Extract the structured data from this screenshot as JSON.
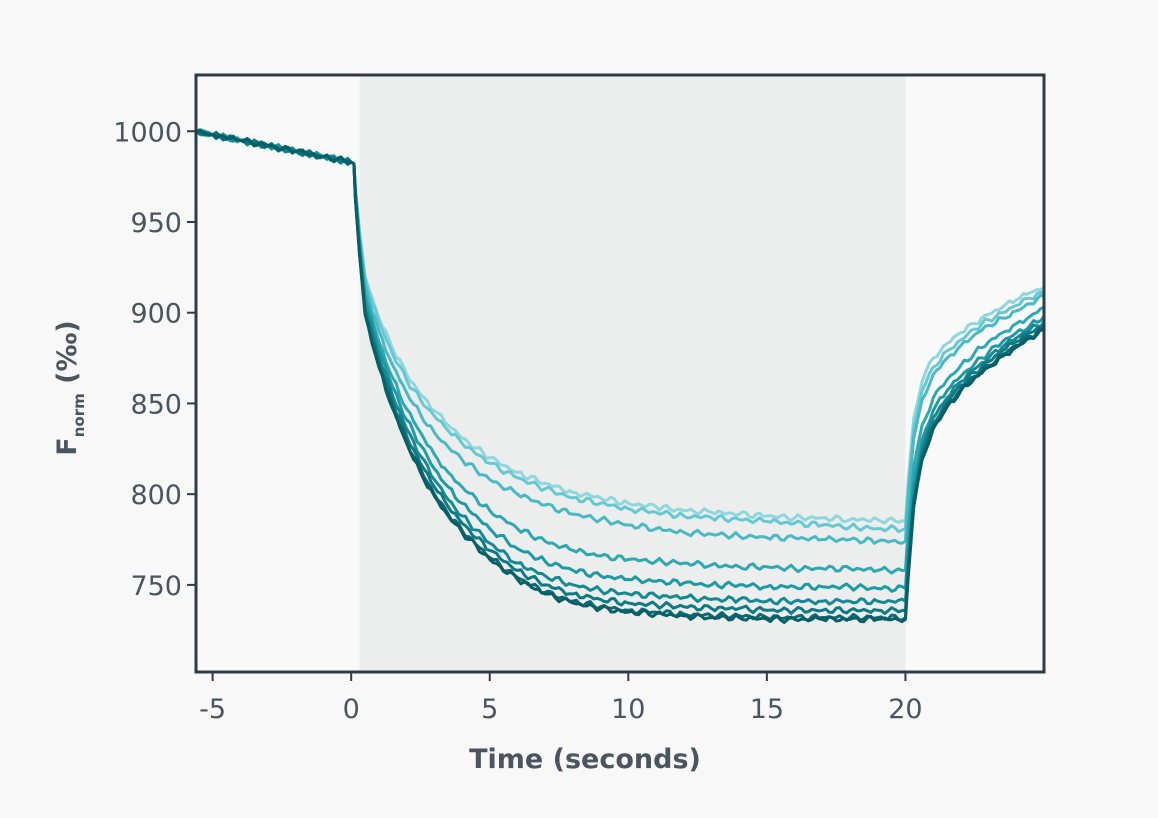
{
  "chart_data": {
    "type": "line",
    "title": "",
    "xlabel": "Time (seconds)",
    "ylabel_main": "F",
    "ylabel_sub": "norm",
    "ylabel_unit": " (‰)",
    "xlim": [
      -5.6,
      25
    ],
    "ylim": [
      702,
      1031
    ],
    "x_ticks": [
      -5,
      0,
      5,
      10,
      15,
      20
    ],
    "x_tick_labels": [
      "-5",
      "0",
      "5",
      "10",
      "15",
      "20"
    ],
    "y_ticks": [
      750,
      800,
      850,
      900,
      950,
      1000
    ],
    "y_tick_labels": [
      "750",
      "800",
      "850",
      "900",
      "950",
      "1000"
    ],
    "grid": false,
    "legend": "none",
    "shaded_interval": [
      0.3,
      20
    ],
    "x": [
      -5.6,
      -5,
      -4,
      -3,
      -2,
      -1,
      0,
      0.1,
      0.15,
      0.3,
      0.5,
      1,
      1.5,
      2,
      2.5,
      3,
      3.5,
      4,
      5,
      6,
      7,
      8,
      9,
      10,
      11,
      12,
      13,
      14,
      15,
      16,
      17,
      18,
      19,
      20,
      20.1,
      20.3,
      20.6,
      21,
      21.5,
      22,
      22.5,
      23,
      23.5,
      24,
      24.5,
      25
    ],
    "series": [
      {
        "color": "#8fd6dd",
        "values": [
          1000,
          998,
          995,
          992,
          989,
          986,
          983,
          982,
          969,
          945,
          920,
          897,
          880,
          866,
          855,
          846,
          838,
          831,
          820,
          812,
          806,
          801,
          798,
          795,
          793,
          791,
          790,
          789,
          788,
          787,
          787,
          786,
          786,
          785,
          808,
          842,
          862,
          875,
          883,
          889,
          894,
          899,
          903,
          907,
          911,
          914
        ]
      },
      {
        "color": "#66c8d2",
        "values": [
          1000,
          998,
          995,
          992,
          989,
          986,
          983,
          982,
          969,
          944,
          919,
          895,
          877,
          863,
          852,
          843,
          835,
          828,
          817,
          809,
          803,
          798,
          795,
          792,
          790,
          788,
          787,
          786,
          785,
          784,
          783,
          782,
          781,
          781,
          802,
          836,
          857,
          870,
          879,
          885,
          891,
          896,
          900,
          904,
          908,
          911
        ]
      },
      {
        "color": "#4ab9c3",
        "values": [
          1000,
          998,
          995,
          992,
          989,
          986,
          983,
          982,
          968,
          942,
          915,
          890,
          871,
          856,
          844,
          834,
          826,
          819,
          808,
          800,
          794,
          789,
          786,
          783,
          781,
          779,
          778,
          777,
          776,
          776,
          775,
          775,
          774,
          774,
          797,
          831,
          852,
          866,
          875,
          882,
          888,
          893,
          897,
          901,
          905,
          909
        ]
      },
      {
        "color": "#2fa8b2",
        "values": [
          1000,
          998,
          995,
          992,
          989,
          986,
          983,
          982,
          967,
          939,
          910,
          884,
          864,
          847,
          834,
          822,
          812,
          804,
          791,
          781,
          774,
          769,
          766,
          764,
          763,
          762,
          761,
          760,
          760,
          759,
          759,
          759,
          758,
          758,
          781,
          815,
          838,
          853,
          863,
          871,
          878,
          884,
          889,
          894,
          898,
          903
        ]
      },
      {
        "color": "#1f9aa4",
        "values": [
          1000,
          998,
          995,
          992,
          989,
          986,
          983,
          982,
          966,
          937,
          907,
          880,
          859,
          841,
          827,
          814,
          804,
          795,
          781,
          770,
          763,
          758,
          755,
          753,
          752,
          751,
          750,
          750,
          749,
          749,
          749,
          749,
          748,
          748,
          771,
          806,
          830,
          846,
          857,
          865,
          872,
          878,
          884,
          889,
          893,
          898
        ]
      },
      {
        "color": "#168a94",
        "values": [
          1000,
          998,
          995,
          992,
          989,
          986,
          983,
          982,
          965,
          935,
          904,
          876,
          854,
          836,
          821,
          808,
          797,
          788,
          773,
          762,
          755,
          750,
          747,
          745,
          744,
          743,
          742,
          742,
          741,
          741,
          741,
          741,
          741,
          741,
          763,
          800,
          825,
          842,
          853,
          862,
          869,
          875,
          881,
          886,
          891,
          895
        ]
      },
      {
        "color": "#0f7a84",
        "values": [
          1000,
          998,
          995,
          992,
          989,
          986,
          983,
          982,
          964,
          934,
          902,
          873,
          851,
          832,
          817,
          804,
          793,
          784,
          769,
          758,
          750,
          745,
          742,
          740,
          739,
          738,
          737,
          737,
          736,
          736,
          736,
          736,
          736,
          736,
          759,
          797,
          822,
          839,
          851,
          860,
          867,
          873,
          879,
          884,
          889,
          893
        ]
      },
      {
        "color": "#0b6a73",
        "values": [
          1000,
          998,
          995,
          992,
          989,
          986,
          983,
          982,
          964,
          933,
          900,
          871,
          848,
          829,
          814,
          800,
          789,
          780,
          765,
          754,
          746,
          741,
          738,
          736,
          735,
          734,
          733,
          733,
          732,
          732,
          732,
          732,
          732,
          732,
          756,
          795,
          820,
          837,
          849,
          858,
          865,
          871,
          877,
          882,
          887,
          891
        ]
      },
      {
        "color": "#0a5e66",
        "values": [
          1000,
          998,
          995,
          992,
          989,
          986,
          983,
          982,
          963,
          932,
          899,
          870,
          847,
          828,
          812,
          799,
          788,
          779,
          764,
          753,
          745,
          740,
          737,
          735,
          734,
          733,
          732,
          732,
          731,
          731,
          731,
          731,
          731,
          731,
          754,
          793,
          819,
          836,
          848,
          857,
          864,
          870,
          876,
          881,
          886,
          890
        ]
      }
    ]
  },
  "colors": {
    "background": "#f8f8f8",
    "plot_background": "#f9f9f9",
    "shaded_region": "#eceeee",
    "frame": "#2f3c48",
    "text": "#4a5560"
  }
}
